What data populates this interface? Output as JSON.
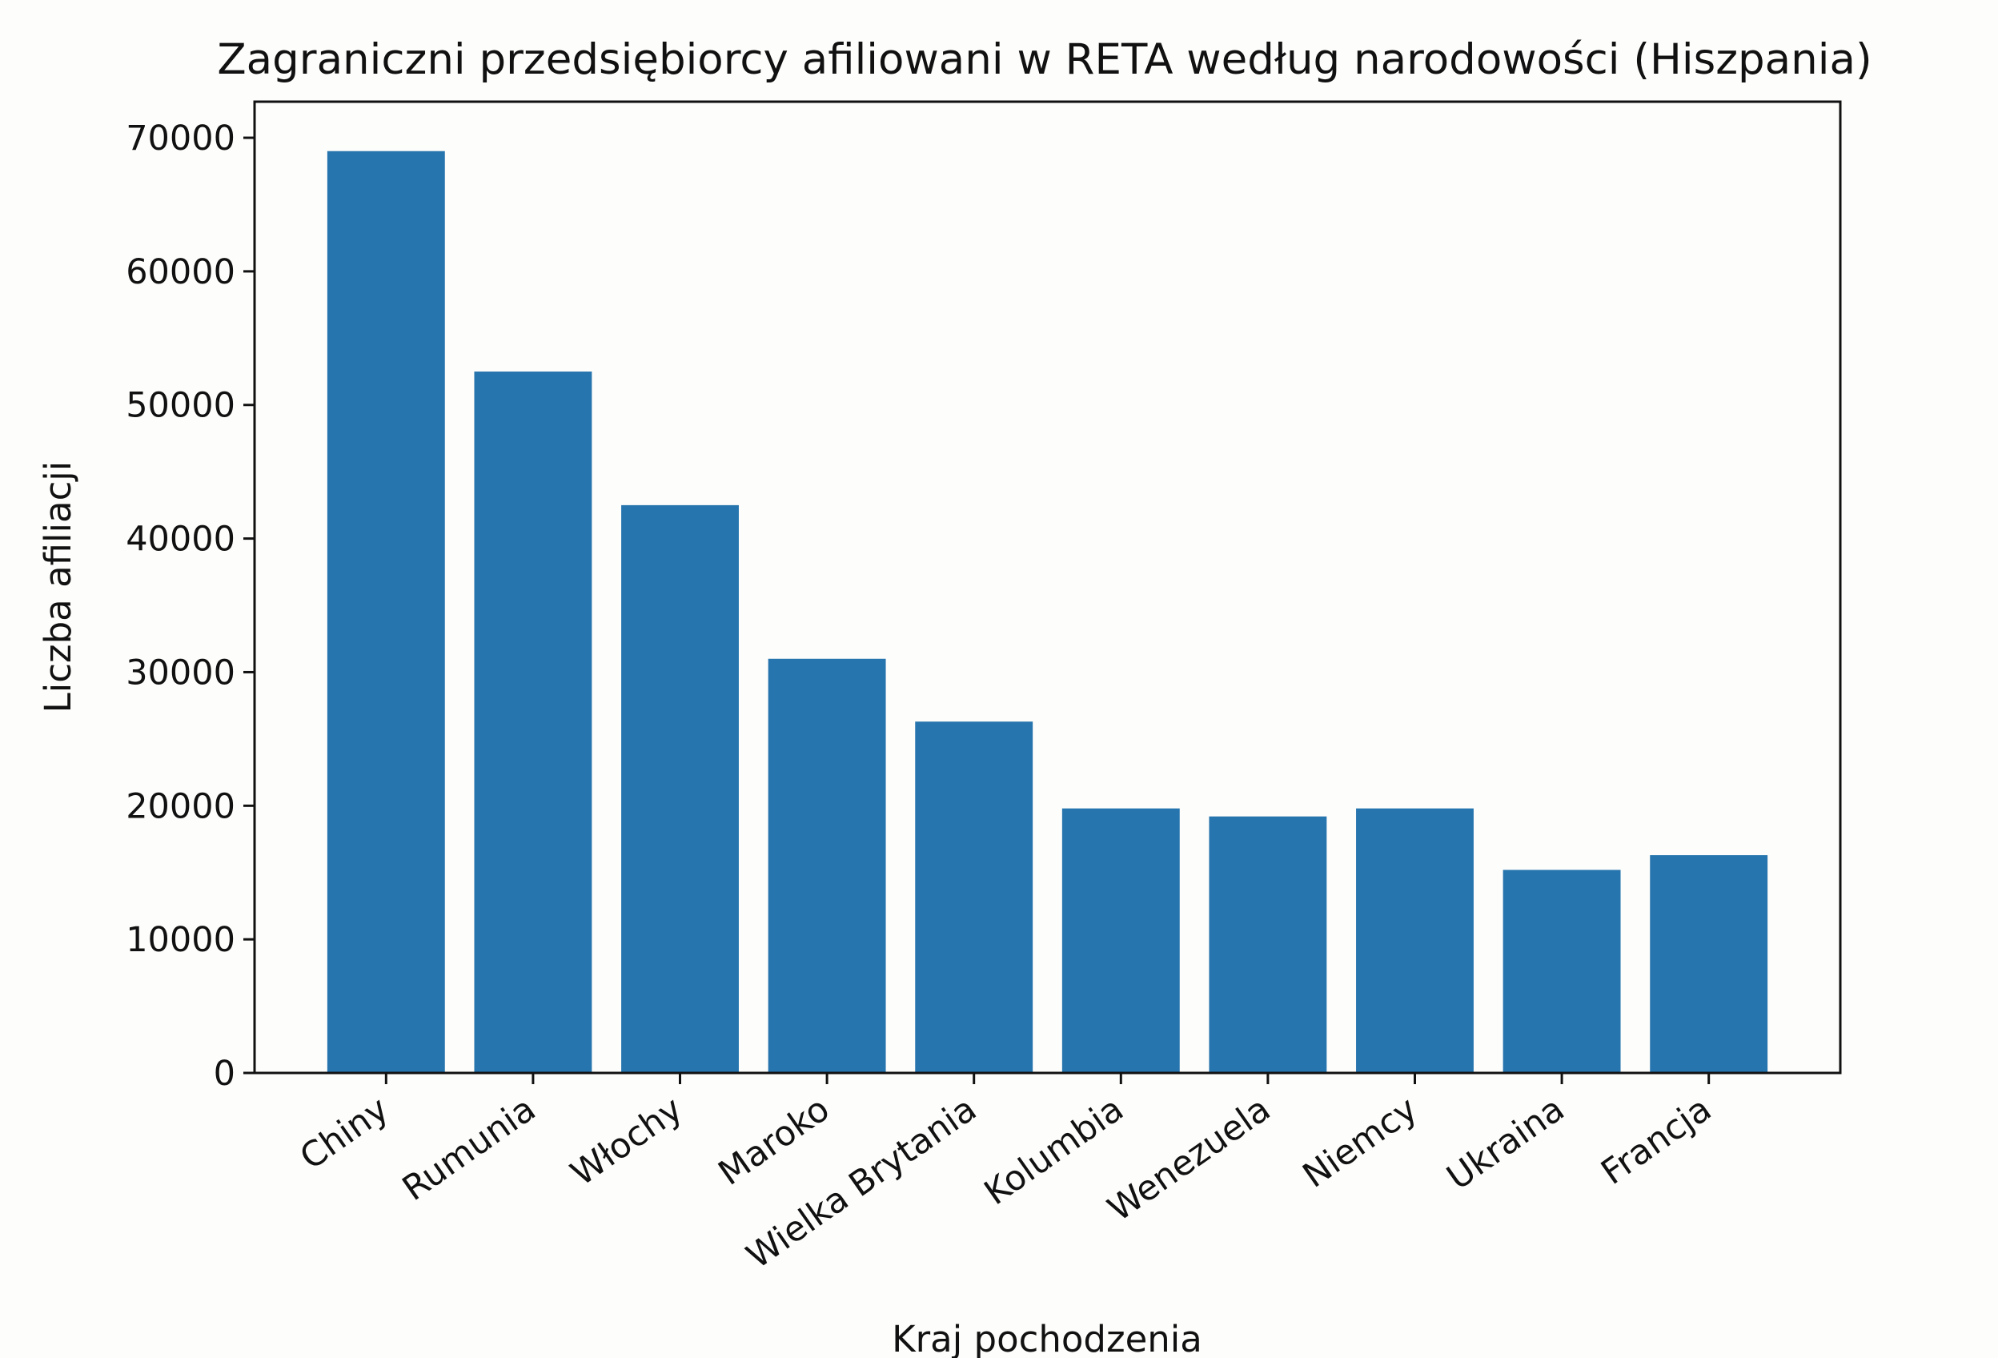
{
  "chart_data": {
    "type": "bar",
    "title": "Zagraniczni przedsiębiorcy afiliowani w RETA według narodowości (Hiszpania)",
    "xlabel": "Kraj pochodzenia",
    "ylabel": "Liczba afiliacji",
    "categories": [
      "Chiny",
      "Rumunia",
      "Włochy",
      "Maroko",
      "Wielka Brytania",
      "Kolumbia",
      "Wenezuela",
      "Niemcy",
      "Ukraina",
      "Francja"
    ],
    "values": [
      69000,
      52500,
      42500,
      31000,
      26300,
      19800,
      19200,
      19800,
      15200,
      16300
    ],
    "ylim": [
      0,
      72700
    ],
    "yticks": [
      0,
      10000,
      20000,
      30000,
      40000,
      50000,
      60000,
      70000
    ],
    "grid": false,
    "bar_color": "#2775ae"
  }
}
